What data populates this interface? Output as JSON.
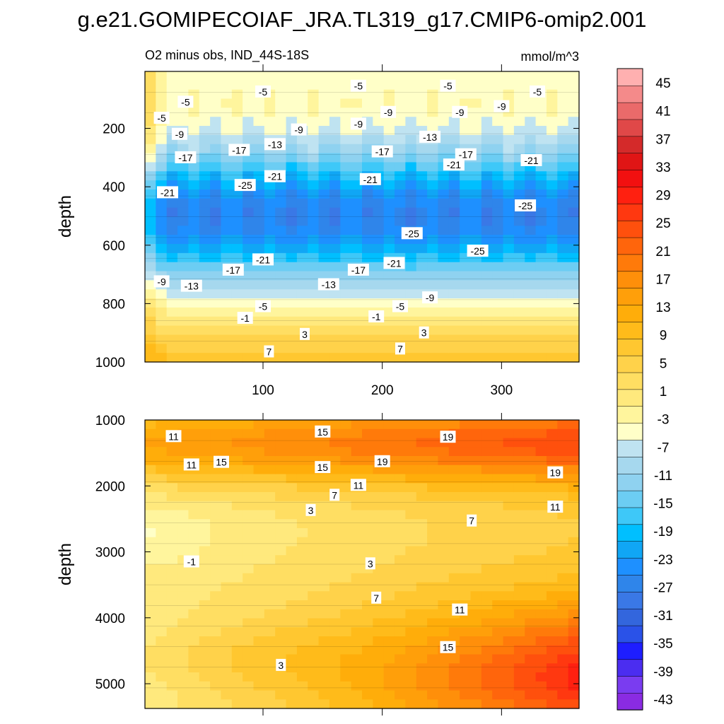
{
  "figure": {
    "title": "g.e21.GOMIPECOIAF_JRA.TL319_g17.CMIP6-omip2.001",
    "left_label": "O2 minus obs, IND_44S-18S",
    "right_label": "mmol/m^3"
  },
  "colors": {
    "levels": [
      "#8a2be2",
      "#7a3cf0",
      "#4b2df0",
      "#1e1eff",
      "#2a52e8",
      "#3366dd",
      "#3a78e6",
      "#2f85ea",
      "#1e90ff",
      "#10a6f5",
      "#00bfff",
      "#3ec8f8",
      "#6ccdf3",
      "#8fd2f0",
      "#a6d8ee",
      "#bfe3f1",
      "#ffffc8",
      "#fff59d",
      "#ffe97d",
      "#ffde62",
      "#ffd24a",
      "#ffc730",
      "#ffbb1a",
      "#ffad0a",
      "#ff9f0a",
      "#ff8f0a",
      "#ff7a0a",
      "#ff650c",
      "#ff500d",
      "#ff3810",
      "#ff2010",
      "#f21010",
      "#e01515",
      "#d42a2a",
      "#e04848",
      "#ea6a6a",
      "#f48a8a",
      "#ffb0b0"
    ]
  },
  "chart_data": [
    {
      "type": "heatmap",
      "panel": "upper",
      "ylabel": "depth",
      "xlabel": "",
      "xlim": [
        1,
        365
      ],
      "ylim": [
        1000,
        5
      ],
      "xticks": [
        100,
        200,
        300
      ],
      "yticks": [
        200,
        400,
        600,
        800,
        1000
      ],
      "contour_interval": 2,
      "description_values": "O2 bias by day-of-year and depth; minimum about -27 near 500 m, positive about +8 near 1000 m",
      "contour_labels": [
        {
          "text": "-5",
          "x": 100,
          "y": 75
        },
        {
          "text": "-5",
          "x": 180,
          "y": 55
        },
        {
          "text": "-5",
          "x": 255,
          "y": 55
        },
        {
          "text": "-5",
          "x": 330,
          "y": 75
        },
        {
          "text": "-5",
          "x": 35,
          "y": 110
        },
        {
          "text": "-5",
          "x": 15,
          "y": 165
        },
        {
          "text": "-9",
          "x": 30,
          "y": 220
        },
        {
          "text": "-9",
          "x": 130,
          "y": 205
        },
        {
          "text": "-9",
          "x": 180,
          "y": 185
        },
        {
          "text": "-9",
          "x": 205,
          "y": 145
        },
        {
          "text": "-9",
          "x": 265,
          "y": 145
        },
        {
          "text": "-9",
          "x": 300,
          "y": 125
        },
        {
          "text": "-13",
          "x": 110,
          "y": 255
        },
        {
          "text": "-13",
          "x": 240,
          "y": 230
        },
        {
          "text": "-17",
          "x": 35,
          "y": 300
        },
        {
          "text": "-17",
          "x": 80,
          "y": 275
        },
        {
          "text": "-17",
          "x": 200,
          "y": 280
        },
        {
          "text": "-17",
          "x": 270,
          "y": 290
        },
        {
          "text": "-21",
          "x": 110,
          "y": 365
        },
        {
          "text": "-21",
          "x": 190,
          "y": 375
        },
        {
          "text": "-21",
          "x": 260,
          "y": 325
        },
        {
          "text": "-21",
          "x": 325,
          "y": 310
        },
        {
          "text": "-21",
          "x": 20,
          "y": 420
        },
        {
          "text": "-25",
          "x": 85,
          "y": 395
        },
        {
          "text": "-25",
          "x": 320,
          "y": 465
        },
        {
          "text": "-25",
          "x": 225,
          "y": 560
        },
        {
          "text": "-25",
          "x": 280,
          "y": 620
        },
        {
          "text": "-21",
          "x": 100,
          "y": 650
        },
        {
          "text": "-21",
          "x": 210,
          "y": 662
        },
        {
          "text": "-17",
          "x": 75,
          "y": 685
        },
        {
          "text": "-17",
          "x": 180,
          "y": 685
        },
        {
          "text": "-13",
          "x": 40,
          "y": 740
        },
        {
          "text": "-13",
          "x": 155,
          "y": 735
        },
        {
          "text": "-9",
          "x": 15,
          "y": 725
        },
        {
          "text": "-9",
          "x": 240,
          "y": 780
        },
        {
          "text": "-5",
          "x": 100,
          "y": 810
        },
        {
          "text": "-5",
          "x": 215,
          "y": 810
        },
        {
          "text": "-1",
          "x": 85,
          "y": 850
        },
        {
          "text": "-1",
          "x": 195,
          "y": 845
        },
        {
          "text": "3",
          "x": 135,
          "y": 905
        },
        {
          "text": "3",
          "x": 235,
          "y": 900
        },
        {
          "text": "7",
          "x": 105,
          "y": 965
        },
        {
          "text": "7",
          "x": 215,
          "y": 955
        }
      ]
    },
    {
      "type": "heatmap",
      "panel": "lower",
      "ylabel": "depth",
      "xlabel": "",
      "xlim": [
        1,
        365
      ],
      "ylim": [
        5375,
        1000
      ],
      "xticks": [
        100,
        200,
        300
      ],
      "yticks": [
        1000,
        2000,
        3000,
        4000,
        5000
      ],
      "contour_interval": 2,
      "description_values": "O2 bias below 1000 m; weak negative pocket about -3 near 2700 m, maximum about +23 near 4800 m",
      "contour_labels": [
        {
          "text": "11",
          "x": 25,
          "y": 1250
        },
        {
          "text": "15",
          "x": 150,
          "y": 1180
        },
        {
          "text": "19",
          "x": 255,
          "y": 1260
        },
        {
          "text": "11",
          "x": 40,
          "y": 1680
        },
        {
          "text": "15",
          "x": 65,
          "y": 1640
        },
        {
          "text": "15",
          "x": 150,
          "y": 1720
        },
        {
          "text": "19",
          "x": 200,
          "y": 1630
        },
        {
          "text": "19",
          "x": 345,
          "y": 1800
        },
        {
          "text": "11",
          "x": 180,
          "y": 1990
        },
        {
          "text": "7",
          "x": 160,
          "y": 2140
        },
        {
          "text": "3",
          "x": 140,
          "y": 2370
        },
        {
          "text": "11",
          "x": 345,
          "y": 2320
        },
        {
          "text": "7",
          "x": 275,
          "y": 2530
        },
        {
          "text": "-1",
          "x": 40,
          "y": 3150
        },
        {
          "text": "3",
          "x": 190,
          "y": 3180
        },
        {
          "text": "7",
          "x": 195,
          "y": 3700
        },
        {
          "text": "11",
          "x": 265,
          "y": 3880
        },
        {
          "text": "15",
          "x": 255,
          "y": 4450
        },
        {
          "text": "3",
          "x": 115,
          "y": 4720
        }
      ]
    }
  ],
  "colorbar": {
    "labels": [
      "45",
      "41",
      "37",
      "33",
      "29",
      "25",
      "21",
      "17",
      "13",
      "9",
      "5",
      "1",
      "-3",
      "-7",
      "-11",
      "-15",
      "-19",
      "-23",
      "-27",
      "-31",
      "-35",
      "-39",
      "-43"
    ]
  }
}
